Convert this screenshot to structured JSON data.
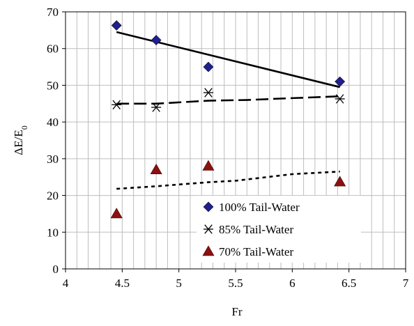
{
  "chart_data": {
    "type": "scatter",
    "title": "",
    "xlabel": "Fr",
    "ylabel": "ΔE/E",
    "ylabel_subscript": "0",
    "xlim": [
      4,
      7
    ],
    "ylim": [
      0,
      70
    ],
    "x_ticks": [
      4,
      4.5,
      5,
      5.5,
      6,
      6.5,
      7
    ],
    "x_tick_labels": [
      "4",
      "4.5",
      "5",
      "5.5",
      "6",
      "6.5",
      "7"
    ],
    "y_ticks": [
      0,
      10,
      20,
      30,
      40,
      50,
      60,
      70
    ],
    "y_tick_labels": [
      "0",
      "10",
      "20",
      "30",
      "40",
      "50",
      "60",
      "70"
    ],
    "x_minor_step": 0.1,
    "y_minor_step": 10,
    "grid": true,
    "legend_position": "bottom-right-inside",
    "series": [
      {
        "name": "100% Tail-Water",
        "marker": "diamond",
        "color": "#1f1f8f",
        "x": [
          4.45,
          4.8,
          5.26,
          6.42
        ],
        "y": [
          66.3,
          62.3,
          55.0,
          51.0
        ],
        "trend": {
          "style": "solid",
          "x": [
            4.45,
            6.42
          ],
          "y": [
            64.5,
            49.5
          ]
        }
      },
      {
        "name": "85% Tail-Water",
        "marker": "asterisk",
        "color": "#000000",
        "x": [
          4.45,
          4.8,
          5.26,
          6.42
        ],
        "y": [
          44.7,
          44.0,
          48.0,
          46.3
        ],
        "trend": {
          "style": "long-dash",
          "x": [
            4.45,
            4.8,
            5.26,
            5.6,
            6.0,
            6.42
          ],
          "y": [
            45.0,
            45.0,
            45.8,
            46.0,
            46.5,
            47.0
          ]
        }
      },
      {
        "name": "70% Tail-Water",
        "marker": "triangle",
        "color": "#8b1010",
        "x": [
          4.45,
          4.8,
          5.26,
          6.42
        ],
        "y": [
          15.0,
          27.0,
          28.0,
          23.7
        ],
        "trend": {
          "style": "short-dash",
          "x": [
            4.45,
            4.8,
            5.26,
            5.5,
            6.0,
            6.42
          ],
          "y": [
            21.8,
            22.5,
            23.6,
            24.0,
            25.8,
            26.5
          ]
        }
      }
    ]
  }
}
